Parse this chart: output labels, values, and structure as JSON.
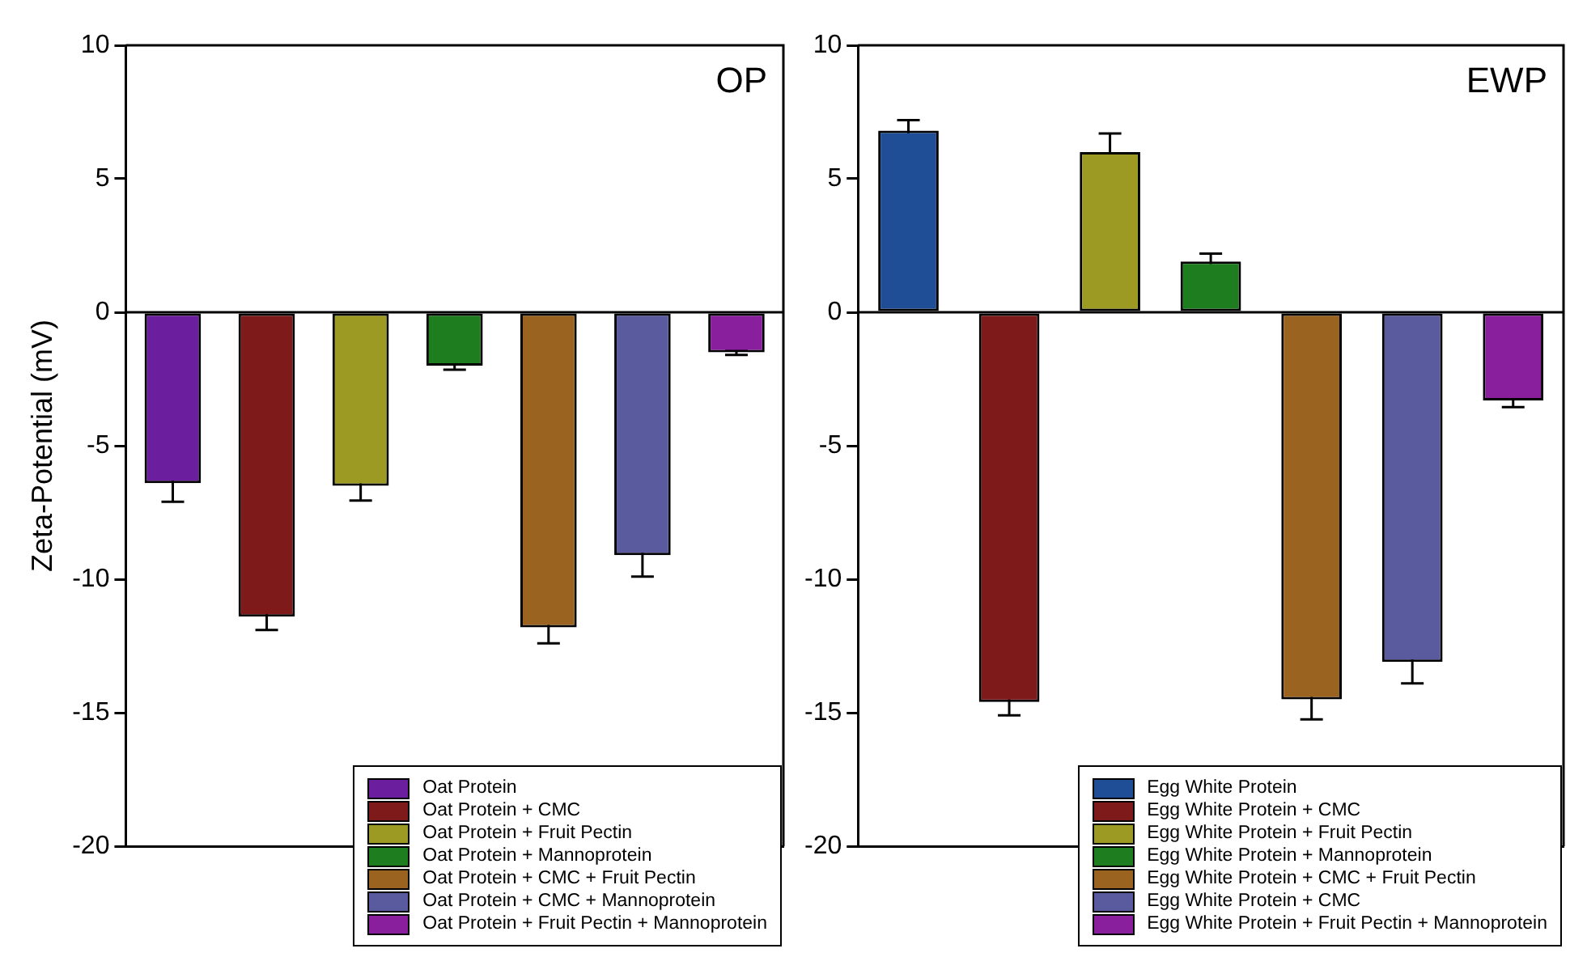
{
  "chart_data": [
    {
      "type": "bar",
      "ylabel": "Zeta-Potential (mV)",
      "annotations": [
        "OP"
      ],
      "categories": [
        null,
        null,
        null,
        null,
        null,
        null,
        null
      ],
      "ylim": [
        -20,
        10
      ],
      "yticks": [
        -20,
        -15,
        -10,
        -5,
        0,
        5,
        10
      ],
      "legend": "bottom right",
      "tick_labels": "y",
      "series": [
        {
          "name": "Oat Protein",
          "color": "#6b1f9e",
          "values": [
            -6.4,
            null,
            null,
            null,
            null,
            null,
            null
          ],
          "errors": [
            0.7,
            null,
            null,
            null,
            null,
            null,
            null
          ]
        },
        {
          "name": "Oat Protein + CMC",
          "color": "#7f1a1a",
          "values": [
            null,
            -11.4,
            null,
            null,
            null,
            null,
            null
          ],
          "errors": [
            null,
            0.5,
            null,
            null,
            null,
            null,
            null
          ]
        },
        {
          "name": "Oat Protein + Fruit Pectin",
          "color": "#9c9a22",
          "values": [
            null,
            null,
            -6.5,
            null,
            null,
            null,
            null
          ],
          "errors": [
            null,
            null,
            0.55,
            null,
            null,
            null,
            null
          ]
        },
        {
          "name": "Oat Protein + Mannoprotein",
          "color": "#1e7d1e",
          "values": [
            null,
            null,
            null,
            -2.0,
            null,
            null,
            null
          ],
          "errors": [
            null,
            null,
            null,
            0.15,
            null,
            null,
            null
          ]
        },
        {
          "name": "Oat Protein + CMC + Fruit Pectin",
          "color": "#9a6320",
          "values": [
            null,
            null,
            null,
            null,
            -11.8,
            null,
            null
          ],
          "errors": [
            null,
            null,
            null,
            null,
            0.6,
            null,
            null
          ]
        },
        {
          "name": "Oat Protein + CMC + Mannoprotein",
          "color": "#5a5a9e",
          "values": [
            null,
            null,
            null,
            null,
            null,
            -9.1,
            null
          ],
          "errors": [
            null,
            null,
            null,
            null,
            null,
            0.8,
            null
          ]
        },
        {
          "name": "Oat Protein + Fruit Pectin + Mannoprotein",
          "color": "#8a1f9e",
          "values": [
            null,
            null,
            null,
            null,
            null,
            null,
            -1.5
          ],
          "errors": [
            null,
            null,
            null,
            null,
            null,
            null,
            0.1
          ]
        }
      ]
    },
    {
      "type": "bar",
      "annotations": [
        "EWP"
      ],
      "categories": [
        null,
        null,
        null,
        null,
        null,
        null,
        null
      ],
      "ylim": [
        -20,
        10
      ],
      "yticks": [
        -20,
        -15,
        -10,
        -5,
        0,
        5,
        10
      ],
      "legend": "bottom right",
      "tick_labels": "y",
      "series": [
        {
          "name": "Egg White Protein",
          "color": "#1f4e96",
          "values": [
            6.8,
            null,
            null,
            null,
            null,
            null,
            null
          ],
          "errors": [
            0.4,
            null,
            null,
            null,
            null,
            null,
            null
          ]
        },
        {
          "name": "Egg White Protein + CMC",
          "color": "#7f1a1a",
          "values": [
            null,
            -14.6,
            null,
            null,
            null,
            null,
            null
          ],
          "errors": [
            null,
            0.5,
            null,
            null,
            null,
            null,
            null
          ]
        },
        {
          "name": "Egg White Protein + Fruit Pectin",
          "color": "#9c9a22",
          "values": [
            null,
            null,
            6.0,
            null,
            null,
            null,
            null
          ],
          "errors": [
            null,
            null,
            0.7,
            null,
            null,
            null,
            null
          ]
        },
        {
          "name": "Egg White Protein + Mannoprotein",
          "color": "#1e7d1e",
          "values": [
            null,
            null,
            null,
            1.9,
            null,
            null,
            null
          ],
          "errors": [
            null,
            null,
            null,
            0.3,
            null,
            null,
            null
          ]
        },
        {
          "name": "Egg White Protein + CMC + Fruit Pectin",
          "color": "#9a6320",
          "values": [
            null,
            null,
            null,
            null,
            -14.5,
            null,
            null
          ],
          "errors": [
            null,
            null,
            null,
            null,
            0.75,
            null,
            null
          ]
        },
        {
          "name": "Egg White Protein + CMC",
          "color": "#5a5a9e",
          "values": [
            null,
            null,
            null,
            null,
            null,
            -13.1,
            null
          ],
          "errors": [
            null,
            null,
            null,
            null,
            null,
            0.8,
            null
          ]
        },
        {
          "name": "Egg White Protein + Fruit Pectin + Mannoprotein",
          "color": "#8a1f9e",
          "values": [
            null,
            null,
            null,
            null,
            null,
            null,
            -3.3
          ],
          "errors": [
            null,
            null,
            null,
            null,
            null,
            null,
            0.25
          ]
        }
      ]
    }
  ]
}
